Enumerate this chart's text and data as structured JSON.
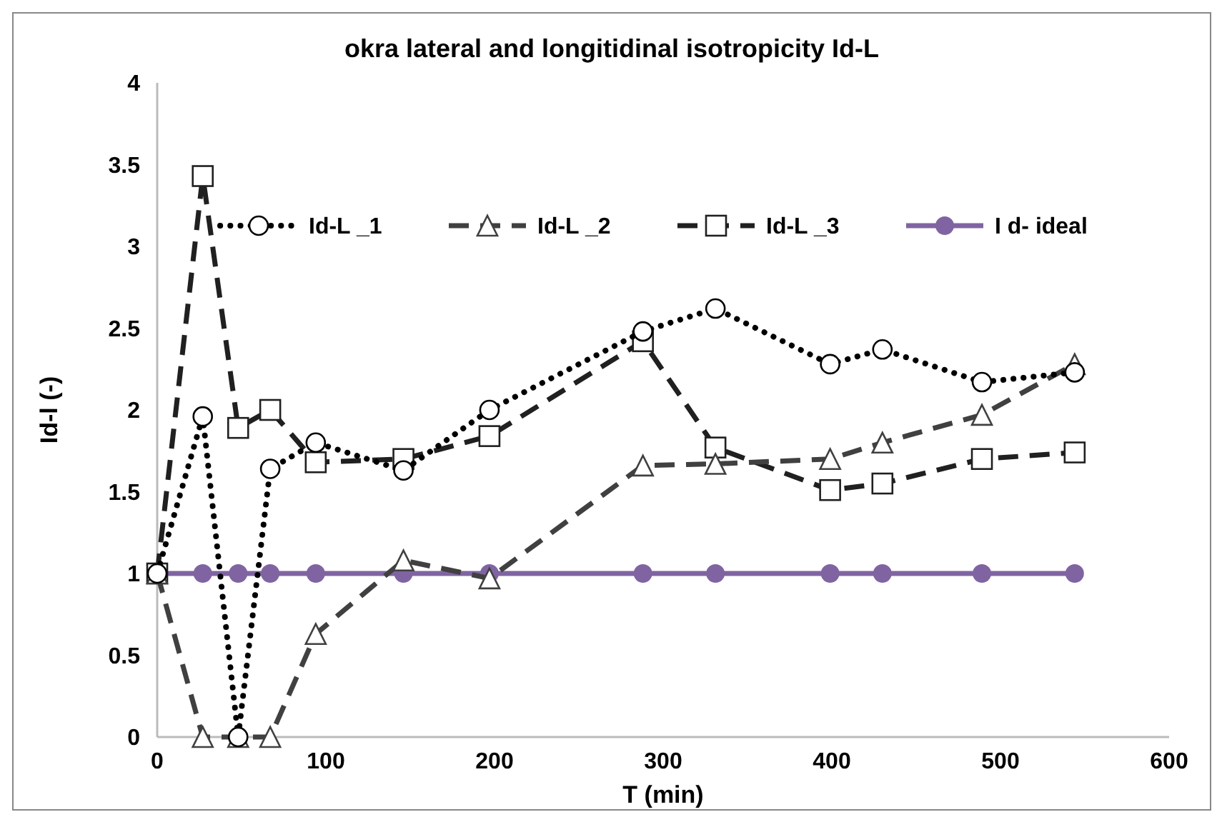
{
  "chart_data": {
    "type": "line",
    "title": "okra lateral and longitidinal isotropicity Id-L",
    "xlabel": "T (min)",
    "ylabel": "Id-l (-)",
    "xlim": [
      0,
      600
    ],
    "xticks": [
      0,
      100,
      200,
      300,
      400,
      500,
      600
    ],
    "ylim": [
      0,
      4
    ],
    "yticks": [
      0,
      0.5,
      1,
      1.5,
      2,
      2.5,
      3,
      3.5,
      4
    ],
    "grid": false,
    "legend": "top",
    "x": [
      0,
      27,
      48,
      67,
      94,
      146,
      197,
      288,
      331,
      399,
      430,
      489,
      544
    ],
    "series": [
      {
        "name": "Id-L _1",
        "color": "#000000",
        "marker": "circle",
        "line_style": "dotted",
        "values": [
          1,
          1.96,
          0,
          1.64,
          1.8,
          1.63,
          2.0,
          2.48,
          2.62,
          2.28,
          2.37,
          2.17,
          2.23
        ]
      },
      {
        "name": "Id-L _2",
        "color": "#404040",
        "marker": "triangle",
        "line_style": "dashed",
        "values": [
          1,
          0,
          0,
          0,
          0.63,
          1.08,
          0.97,
          1.66,
          1.67,
          1.7,
          1.8,
          1.97,
          2.28
        ]
      },
      {
        "name": "Id-L _3",
        "color": "#202020",
        "marker": "square",
        "line_style": "dashed",
        "values": [
          1,
          3.43,
          1.89,
          2.0,
          1.68,
          1.7,
          1.84,
          2.42,
          1.77,
          1.51,
          1.55,
          1.7,
          1.74
        ]
      },
      {
        "name": "I d- ideal",
        "color": "#8064a2",
        "marker": "circle",
        "line_style": "solid",
        "values": [
          1,
          1,
          1,
          1,
          1,
          1,
          1,
          1,
          1,
          1,
          1,
          1,
          1
        ]
      }
    ]
  }
}
